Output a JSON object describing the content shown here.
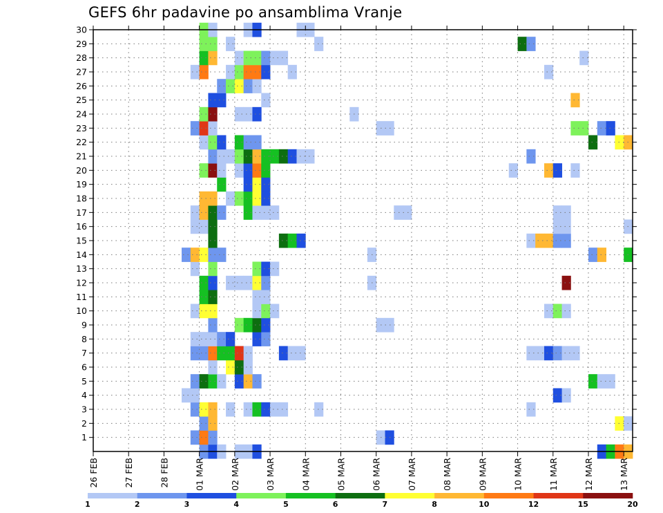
{
  "chart_data": {
    "type": "heatmap",
    "title": "GEFS 6hr padavine po ansamblima Vranje",
    "xlabel": "",
    "ylabel": "",
    "grid": true,
    "x_tick_labels": [
      "26 FEB",
      "27 FEB",
      "28 FEB",
      "01 MAR",
      "02 MAR",
      "03 MAR",
      "04 MAR",
      "05 MAR",
      "06 MAR",
      "07 MAR",
      "08 MAR",
      "09 MAR",
      "10 MAR",
      "11 MAR",
      "12 MAR",
      "13 MAR"
    ],
    "y_tick_labels": [
      "1",
      "2",
      "3",
      "4",
      "5",
      "6",
      "7",
      "8",
      "9",
      "10",
      "11",
      "12",
      "13",
      "14",
      "15",
      "16",
      "17",
      "18",
      "19",
      "20",
      "21",
      "22",
      "23",
      "24",
      "25",
      "26",
      "27",
      "28",
      "29",
      "30"
    ],
    "x_axis": {
      "unit": "days since 26 FEB",
      "range": [
        0,
        15.25
      ],
      "cells_per_day": 4
    },
    "y_axis": {
      "range": [
        0,
        30
      ]
    },
    "legend": {
      "placement": "bottom",
      "labels": [
        "1",
        "2",
        "3",
        "4",
        "5",
        "6",
        "7",
        "8",
        "10",
        "12",
        "15",
        "20"
      ],
      "colors": [
        "#b3c8f5",
        "#6e96ee",
        "#1f4fe0",
        "#7ef25b",
        "#15c022",
        "#0d6e10",
        "#ffff33",
        "#ffb833",
        "#ff7a14",
        "#e03617",
        "#8a1010"
      ]
    },
    "cells": [
      [
        0,
        3.0,
        2
      ],
      [
        0,
        3.25,
        3
      ],
      [
        0,
        3.5,
        1
      ],
      [
        0,
        4.0,
        1
      ],
      [
        0,
        4.25,
        1
      ],
      [
        0,
        4.5,
        3
      ],
      [
        0,
        14.25,
        3
      ],
      [
        0,
        14.5,
        5
      ],
      [
        0,
        14.75,
        9
      ],
      [
        0,
        15.0,
        8
      ],
      [
        1,
        2.75,
        2
      ],
      [
        1,
        3.0,
        9
      ],
      [
        1,
        3.25,
        2
      ],
      [
        1,
        8.0,
        1
      ],
      [
        1,
        8.25,
        3
      ],
      [
        2,
        3.0,
        2
      ],
      [
        2,
        3.25,
        8
      ],
      [
        2,
        14.75,
        7
      ],
      [
        2,
        15.0,
        1
      ],
      [
        3,
        2.75,
        2
      ],
      [
        3,
        3.0,
        7
      ],
      [
        3,
        3.25,
        8
      ],
      [
        3,
        3.75,
        1
      ],
      [
        3,
        4.25,
        1
      ],
      [
        3,
        4.5,
        5
      ],
      [
        3,
        4.75,
        3
      ],
      [
        3,
        5.0,
        1
      ],
      [
        3,
        5.25,
        1
      ],
      [
        3,
        6.25,
        1
      ],
      [
        3,
        12.25,
        1
      ],
      [
        4,
        2.5,
        1
      ],
      [
        4,
        2.75,
        1
      ],
      [
        4,
        13.0,
        3
      ],
      [
        4,
        13.25,
        1
      ],
      [
        5,
        2.75,
        2
      ],
      [
        5,
        3.0,
        6
      ],
      [
        5,
        3.25,
        5
      ],
      [
        5,
        3.5,
        1
      ],
      [
        5,
        4.0,
        3
      ],
      [
        5,
        4.25,
        8
      ],
      [
        5,
        4.5,
        2
      ],
      [
        5,
        14.0,
        5
      ],
      [
        5,
        14.25,
        1
      ],
      [
        5,
        14.5,
        1
      ],
      [
        6,
        3.25,
        1
      ],
      [
        6,
        3.75,
        7
      ],
      [
        6,
        4.0,
        6
      ],
      [
        6,
        4.25,
        1
      ],
      [
        7,
        2.75,
        2
      ],
      [
        7,
        3.0,
        2
      ],
      [
        7,
        3.25,
        9
      ],
      [
        7,
        3.5,
        5
      ],
      [
        7,
        3.75,
        5
      ],
      [
        7,
        4.0,
        10
      ],
      [
        7,
        4.25,
        1
      ],
      [
        7,
        5.25,
        3
      ],
      [
        7,
        5.5,
        1
      ],
      [
        7,
        5.75,
        1
      ],
      [
        7,
        12.25,
        1
      ],
      [
        7,
        12.5,
        1
      ],
      [
        7,
        12.75,
        3
      ],
      [
        7,
        13.0,
        2
      ],
      [
        7,
        13.25,
        1
      ],
      [
        7,
        13.5,
        1
      ],
      [
        8,
        2.75,
        1
      ],
      [
        8,
        3.0,
        1
      ],
      [
        8,
        3.25,
        1
      ],
      [
        8,
        3.5,
        2
      ],
      [
        8,
        3.75,
        3
      ],
      [
        8,
        4.5,
        3
      ],
      [
        8,
        4.75,
        2
      ],
      [
        9,
        3.25,
        2
      ],
      [
        9,
        4.0,
        4
      ],
      [
        9,
        4.25,
        5
      ],
      [
        9,
        4.5,
        6
      ],
      [
        9,
        4.75,
        3
      ],
      [
        9,
        8.0,
        1
      ],
      [
        9,
        8.25,
        1
      ],
      [
        10,
        2.75,
        1
      ],
      [
        10,
        3.0,
        7
      ],
      [
        10,
        3.25,
        7
      ],
      [
        10,
        4.5,
        1
      ],
      [
        10,
        4.75,
        4
      ],
      [
        10,
        5.0,
        1
      ],
      [
        10,
        12.75,
        1
      ],
      [
        10,
        13.0,
        4
      ],
      [
        10,
        13.25,
        1
      ],
      [
        11,
        3.0,
        5
      ],
      [
        11,
        3.25,
        6
      ],
      [
        11,
        4.5,
        1
      ],
      [
        11,
        4.75,
        1
      ],
      [
        12,
        3.0,
        5
      ],
      [
        12,
        3.25,
        3
      ],
      [
        12,
        3.75,
        1
      ],
      [
        12,
        4.0,
        1
      ],
      [
        12,
        4.25,
        1
      ],
      [
        12,
        4.5,
        7
      ],
      [
        12,
        4.75,
        2
      ],
      [
        12,
        7.75,
        1
      ],
      [
        12,
        13.25,
        11
      ],
      [
        13,
        2.75,
        1
      ],
      [
        13,
        3.25,
        4
      ],
      [
        13,
        4.5,
        4
      ],
      [
        13,
        4.75,
        3
      ],
      [
        13,
        5.0,
        1
      ],
      [
        14,
        2.5,
        2
      ],
      [
        14,
        2.75,
        8
      ],
      [
        14,
        3.0,
        7
      ],
      [
        14,
        3.25,
        2
      ],
      [
        14,
        3.5,
        2
      ],
      [
        14,
        7.75,
        1
      ],
      [
        14,
        14.0,
        2
      ],
      [
        14,
        14.25,
        8
      ],
      [
        14,
        15.0,
        5
      ],
      [
        15,
        3.25,
        6
      ],
      [
        15,
        5.25,
        6
      ],
      [
        15,
        5.5,
        5
      ],
      [
        15,
        5.75,
        3
      ],
      [
        15,
        12.25,
        1
      ],
      [
        15,
        12.5,
        8
      ],
      [
        15,
        12.75,
        8
      ],
      [
        15,
        13.0,
        2
      ],
      [
        15,
        13.25,
        2
      ],
      [
        16,
        2.75,
        1
      ],
      [
        16,
        3.0,
        1
      ],
      [
        16,
        3.25,
        6
      ],
      [
        16,
        13.0,
        1
      ],
      [
        16,
        13.25,
        1
      ],
      [
        16,
        15.0,
        1
      ],
      [
        17,
        2.75,
        1
      ],
      [
        17,
        3.0,
        8
      ],
      [
        17,
        3.25,
        6
      ],
      [
        17,
        3.5,
        2
      ],
      [
        17,
        4.25,
        5
      ],
      [
        17,
        4.5,
        1
      ],
      [
        17,
        4.75,
        1
      ],
      [
        17,
        5.0,
        1
      ],
      [
        17,
        8.5,
        1
      ],
      [
        17,
        8.75,
        1
      ],
      [
        17,
        13.0,
        1
      ],
      [
        17,
        13.25,
        1
      ],
      [
        18,
        3.0,
        8
      ],
      [
        18,
        3.25,
        8
      ],
      [
        18,
        3.75,
        1
      ],
      [
        18,
        4.0,
        4
      ],
      [
        18,
        4.25,
        5
      ],
      [
        18,
        4.5,
        7
      ],
      [
        18,
        4.75,
        3
      ],
      [
        19,
        3.5,
        5
      ],
      [
        19,
        4.25,
        3
      ],
      [
        19,
        4.5,
        7
      ],
      [
        19,
        4.75,
        3
      ],
      [
        20,
        3.0,
        4
      ],
      [
        20,
        3.25,
        11
      ],
      [
        20,
        3.5,
        1
      ],
      [
        20,
        4.0,
        1
      ],
      [
        20,
        4.25,
        3
      ],
      [
        20,
        4.5,
        9
      ],
      [
        20,
        4.75,
        5
      ],
      [
        20,
        11.75,
        1
      ],
      [
        20,
        12.75,
        8
      ],
      [
        20,
        13.0,
        3
      ],
      [
        20,
        13.5,
        1
      ],
      [
        21,
        3.25,
        2
      ],
      [
        21,
        3.5,
        1
      ],
      [
        21,
        3.75,
        1
      ],
      [
        21,
        4.0,
        4
      ],
      [
        21,
        4.25,
        6
      ],
      [
        21,
        4.5,
        8
      ],
      [
        21,
        4.75,
        5
      ],
      [
        21,
        5.0,
        5
      ],
      [
        21,
        5.25,
        6
      ],
      [
        21,
        5.5,
        3
      ],
      [
        21,
        5.75,
        1
      ],
      [
        21,
        6.0,
        1
      ],
      [
        21,
        12.25,
        2
      ],
      [
        22,
        3.0,
        1
      ],
      [
        22,
        3.25,
        4
      ],
      [
        22,
        3.5,
        3
      ],
      [
        22,
        4.0,
        5
      ],
      [
        22,
        4.25,
        2
      ],
      [
        22,
        4.5,
        2
      ],
      [
        22,
        14.0,
        6
      ],
      [
        22,
        14.75,
        7
      ],
      [
        22,
        15.0,
        8
      ],
      [
        23,
        2.75,
        2
      ],
      [
        23,
        3.0,
        10
      ],
      [
        23,
        3.25,
        1
      ],
      [
        23,
        8.0,
        1
      ],
      [
        23,
        8.25,
        1
      ],
      [
        23,
        13.5,
        4
      ],
      [
        23,
        13.75,
        4
      ],
      [
        23,
        14.25,
        2
      ],
      [
        23,
        14.5,
        3
      ],
      [
        24,
        3.0,
        4
      ],
      [
        24,
        3.25,
        11
      ],
      [
        24,
        4.0,
        1
      ],
      [
        24,
        4.25,
        1
      ],
      [
        24,
        4.5,
        3
      ],
      [
        24,
        7.25,
        1
      ],
      [
        25,
        3.25,
        3
      ],
      [
        25,
        3.5,
        3
      ],
      [
        25,
        4.75,
        1
      ],
      [
        25,
        13.5,
        8
      ],
      [
        26,
        3.5,
        2
      ],
      [
        26,
        3.75,
        4
      ],
      [
        26,
        4.0,
        7
      ],
      [
        26,
        4.25,
        2
      ],
      [
        26,
        4.5,
        1
      ],
      [
        27,
        2.75,
        1
      ],
      [
        27,
        3.0,
        9
      ],
      [
        27,
        3.75,
        1
      ],
      [
        27,
        4.0,
        4
      ],
      [
        27,
        4.25,
        9
      ],
      [
        27,
        4.5,
        9
      ],
      [
        27,
        4.75,
        3
      ],
      [
        27,
        5.5,
        1
      ],
      [
        27,
        12.75,
        1
      ],
      [
        28,
        3.0,
        5
      ],
      [
        28,
        3.25,
        8
      ],
      [
        28,
        4.0,
        1
      ],
      [
        28,
        4.25,
        4
      ],
      [
        28,
        4.5,
        4
      ],
      [
        28,
        4.75,
        2
      ],
      [
        28,
        5.0,
        1
      ],
      [
        28,
        5.25,
        1
      ],
      [
        28,
        13.75,
        1
      ],
      [
        29,
        3.0,
        4
      ],
      [
        29,
        3.25,
        4
      ],
      [
        29,
        3.75,
        1
      ],
      [
        29,
        6.25,
        1
      ],
      [
        29,
        12.0,
        6
      ],
      [
        29,
        12.25,
        2
      ],
      [
        30,
        3.0,
        4
      ],
      [
        30,
        3.25,
        1
      ],
      [
        30,
        4.25,
        1
      ],
      [
        30,
        4.5,
        3
      ],
      [
        30,
        5.75,
        1
      ],
      [
        30,
        6.0,
        1
      ]
    ]
  }
}
